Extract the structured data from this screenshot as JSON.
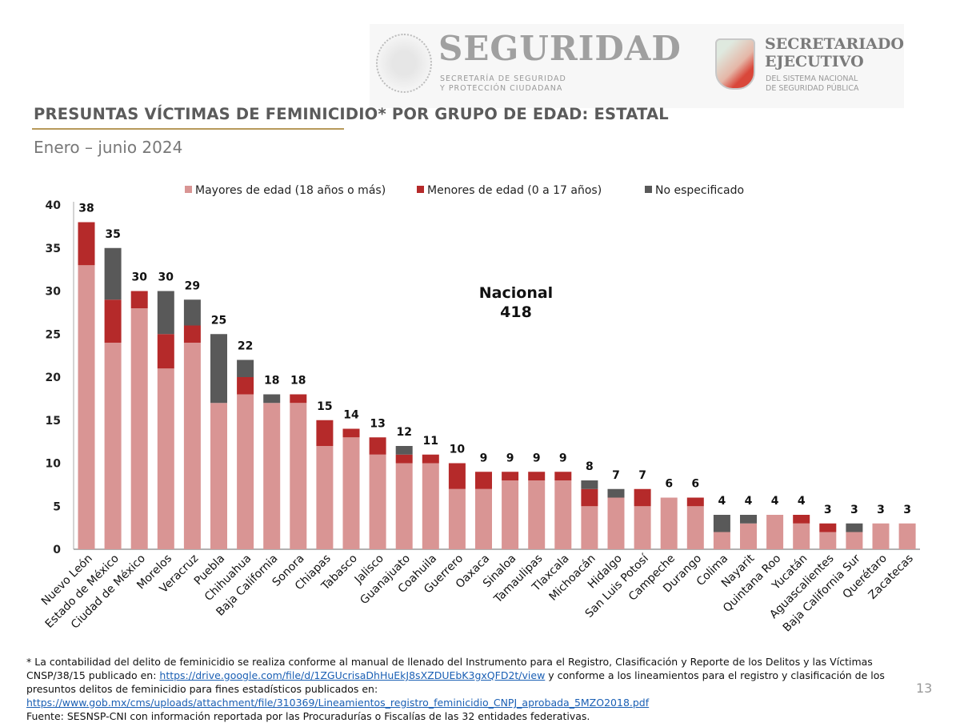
{
  "header": {
    "seguridad_logo": {
      "title": "SEGURIDAD",
      "line1": "SECRETARÍA DE SEGURIDAD",
      "line2": "Y PROTECCIÓN CIUDADANA"
    },
    "secretariado_logo": {
      "line1": "SECRETARIADO",
      "line2": "EJECUTIVO",
      "line3": "DEL SISTEMA NACIONAL",
      "line4": "DE SEGURIDAD PÚBLICA"
    },
    "title": "PRESUNTAS VÍCTIMAS DE FEMINICIDIO* POR GRUPO DE EDAD: ESTATAL",
    "subtitle": "Enero – junio 2024"
  },
  "annotation": {
    "line1": "Nacional",
    "line2": "418"
  },
  "chart_data": {
    "type": "bar",
    "stacked": true,
    "legend_position": "top",
    "grid": false,
    "ylim": [
      0,
      40
    ],
    "yticks": [
      0,
      5,
      10,
      15,
      20,
      25,
      30,
      35,
      40
    ],
    "categories": [
      "Nuevo León",
      "Estado de México",
      "Ciudad de México",
      "Morelos",
      "Veracruz",
      "Puebla",
      "Chihuahua",
      "Baja California",
      "Sonora",
      "Chiapas",
      "Tabasco",
      "Jalisco",
      "Guanajuato",
      "Coahuila",
      "Guerrero",
      "Oaxaca",
      "Sinaloa",
      "Tamaulipas",
      "Tlaxcala",
      "Michoacán",
      "Hidalgo",
      "San Luis Potosí",
      "Campeche",
      "Durango",
      "Colima",
      "Nayarit",
      "Quintana Roo",
      "Yucatán",
      "Aguascalientes",
      "Baja California Sur",
      "Querétaro",
      "Zacatecas"
    ],
    "series": [
      {
        "name": "Mayores de edad (18 años o más)",
        "color": "#d99594",
        "values": [
          33,
          24,
          28,
          21,
          24,
          17,
          18,
          17,
          17,
          12,
          13,
          11,
          10,
          10,
          7,
          7,
          8,
          8,
          8,
          5,
          6,
          5,
          6,
          5,
          2,
          3,
          4,
          3,
          2,
          2,
          3,
          3
        ]
      },
      {
        "name": "Menores de edad (0 a 17 años)",
        "color": "#b52a2a",
        "values": [
          5,
          5,
          2,
          4,
          2,
          0,
          2,
          0,
          1,
          3,
          1,
          2,
          1,
          1,
          3,
          2,
          1,
          1,
          1,
          2,
          0,
          2,
          0,
          1,
          0,
          0,
          0,
          1,
          1,
          0,
          0,
          0
        ]
      },
      {
        "name": "No especificado",
        "color": "#595959",
        "values": [
          0,
          6,
          0,
          5,
          3,
          8,
          2,
          1,
          0,
          0,
          0,
          0,
          1,
          0,
          0,
          0,
          0,
          0,
          0,
          1,
          1,
          0,
          0,
          0,
          2,
          1,
          0,
          0,
          0,
          1,
          0,
          0
        ]
      }
    ],
    "totals": [
      38,
      35,
      30,
      30,
      29,
      25,
      22,
      18,
      18,
      15,
      14,
      13,
      12,
      11,
      10,
      9,
      9,
      9,
      9,
      8,
      7,
      7,
      6,
      6,
      4,
      4,
      4,
      4,
      3,
      3,
      3,
      3
    ]
  },
  "footnote": {
    "text1": "* La contabilidad del delito de feminicidio se realiza conforme al manual de llenado del Instrumento para el Registro, Clasificación y Reporte de los Delitos y las Víctimas CNSP/38/15 publicado en: ",
    "link1": "https://drive.google.com/file/d/1ZGUcrisaDhHuEkJ8sXZDUEbK3gxQFD2t/view",
    "text2": " y conforme a los lineamientos para el registro y clasificación de los presuntos delitos de feminicidio para fines estadísticos publicados en: ",
    "link2": "https://www.gob.mx/cms/uploads/attachment/file/310369/Lineamientos_registro_feminicidio_CNPJ_aprobada_5MZO2018.pdf",
    "source": "Fuente: SESNSP-CNI con información reportada por las Procuradurías o Fiscalías de las 32 entidades federativas."
  },
  "page_number": "13"
}
